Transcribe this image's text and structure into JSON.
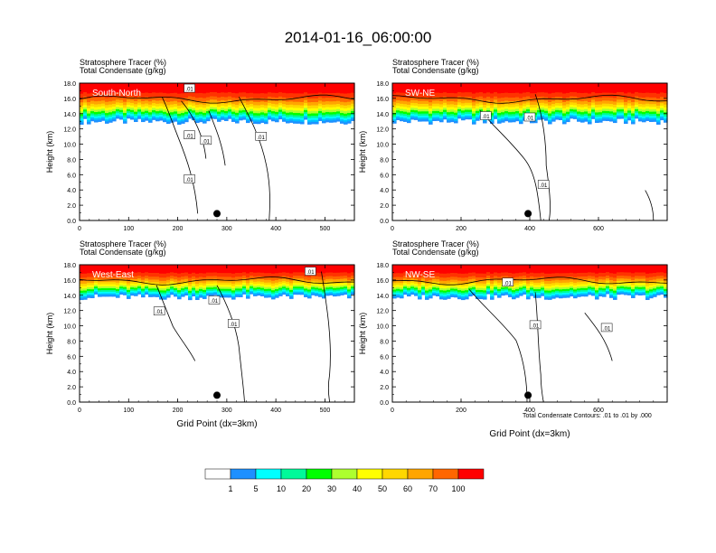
{
  "title": "2014-01-16_06:00:00",
  "panel_header": {
    "line1": "Stratosphere Tracer   (%)",
    "line2": "Total Condensate   (g/kg)"
  },
  "axes": {
    "ylabel": "Height (km)",
    "xlabel": "Grid Point (dx=3km)",
    "ytick_labels": [
      "0.0",
      "2.0",
      "4.0",
      "6.0",
      "8.0",
      "10.0",
      "12.0",
      "14.0",
      "16.0",
      "18.0"
    ]
  },
  "footnote": "Total Condensate Contours: .01 to .01 by .000",
  "colorbar": {
    "labels": [
      "1",
      "5",
      "10",
      "20",
      "30",
      "40",
      "50",
      "60",
      "70",
      "100"
    ],
    "colors": [
      "#ffffff",
      "#1e90ff",
      "#00bfff",
      "#00ffff",
      "#00fa9a",
      "#00ff00",
      "#adff2f",
      "#ffff00",
      "#ffd700",
      "#ffa500",
      "#ff6600",
      "#ff0000"
    ]
  },
  "contour_label": ".01",
  "chart_data": [
    {
      "type": "heatmap",
      "panel": "South-North",
      "xlim": [
        0,
        560
      ],
      "ylim": [
        0,
        18
      ],
      "xticks": [
        0,
        100,
        200,
        300,
        400,
        500
      ],
      "yticks": [
        0,
        2,
        4,
        6,
        8,
        10,
        12,
        14,
        16,
        18
      ],
      "storm_center_x": 280
    },
    {
      "type": "heatmap",
      "panel": "SW-NE",
      "xlim": [
        0,
        800
      ],
      "ylim": [
        0,
        18
      ],
      "xticks": [
        0,
        200,
        400,
        600
      ],
      "yticks": [
        0,
        2,
        4,
        6,
        8,
        10,
        12,
        14,
        16,
        18
      ],
      "storm_center_x": 395
    },
    {
      "type": "heatmap",
      "panel": "West-East",
      "xlim": [
        0,
        560
      ],
      "ylim": [
        0,
        18
      ],
      "xticks": [
        0,
        100,
        200,
        300,
        400,
        500
      ],
      "yticks": [
        0,
        2,
        4,
        6,
        8,
        10,
        12,
        14,
        16,
        18
      ],
      "storm_center_x": 280
    },
    {
      "type": "heatmap",
      "panel": "NW-SE",
      "xlim": [
        0,
        800
      ],
      "ylim": [
        0,
        18
      ],
      "xticks": [
        0,
        200,
        400,
        600
      ],
      "yticks": [
        0,
        2,
        4,
        6,
        8,
        10,
        12,
        14,
        16,
        18
      ],
      "storm_center_x": 395
    }
  ]
}
